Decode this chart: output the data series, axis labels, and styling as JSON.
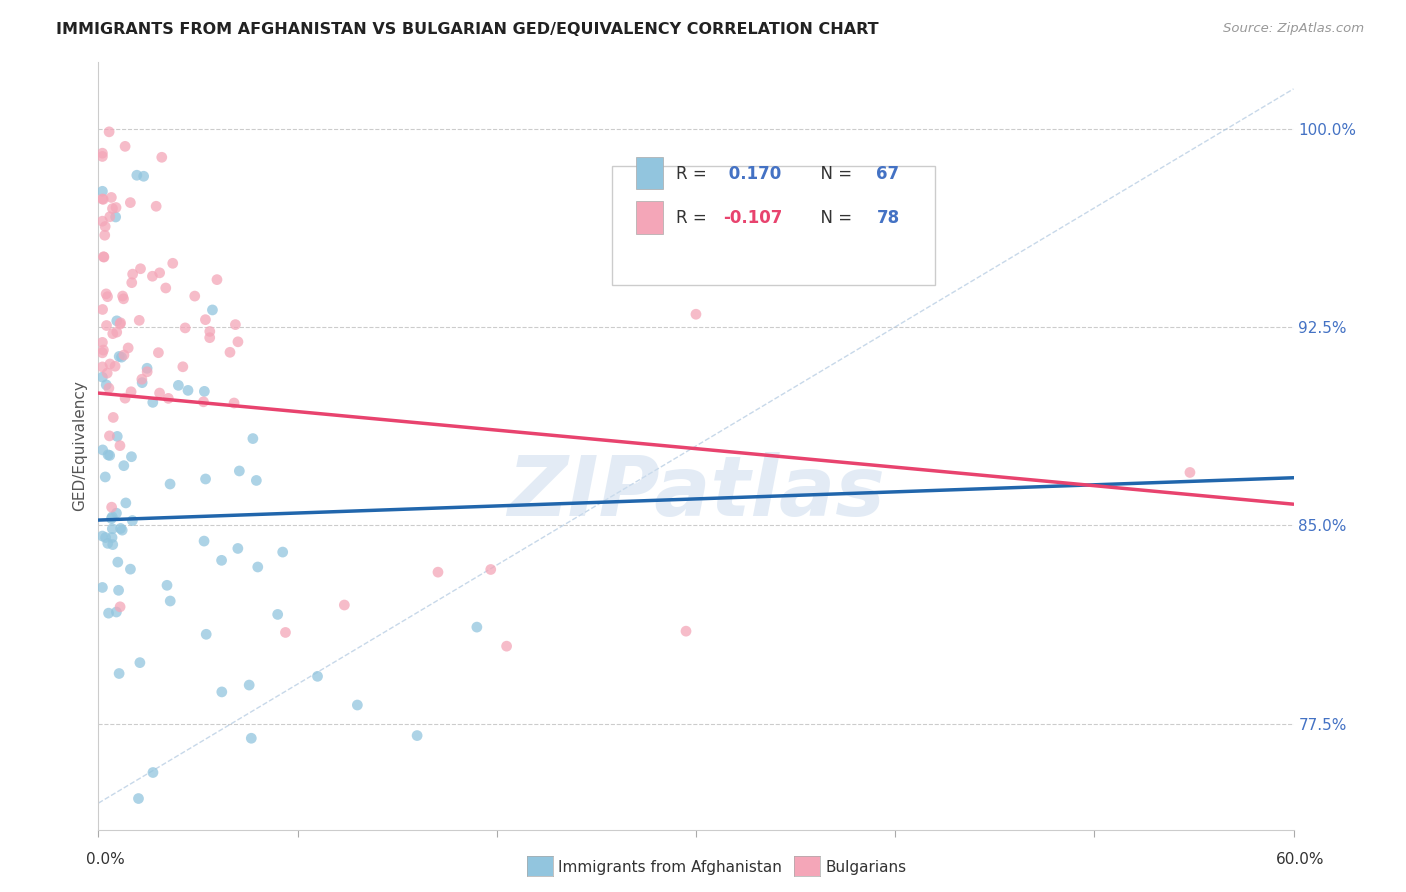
{
  "title": "IMMIGRANTS FROM AFGHANISTAN VS BULGARIAN GED/EQUIVALENCY CORRELATION CHART",
  "source": "Source: ZipAtlas.com",
  "ylabel": "GED/Equivalency",
  "yticks": [
    0.775,
    0.85,
    0.925,
    1.0
  ],
  "ytick_labels": [
    "77.5%",
    "85.0%",
    "92.5%",
    "100.0%"
  ],
  "xmin": 0.0,
  "xmax": 0.6,
  "ymin": 0.735,
  "ymax": 1.025,
  "color_afghanistan": "#92c5de",
  "color_bulgarians": "#f4a6b8",
  "color_trendline_afghanistan": "#2166ac",
  "color_trendline_bulgarians": "#e8436e",
  "color_diagonal": "#b8d4e8",
  "legend_r_af": " 0.170",
  "legend_n_af": "67",
  "legend_r_bg": "-0.107",
  "legend_n_bg": "78",
  "legend_label1": "Immigrants from Afghanistan",
  "legend_label2": "Bulgarians",
  "watermark": "ZIPatlas",
  "af_trend_x0": 0.0,
  "af_trend_x1": 0.6,
  "af_trend_y0": 0.852,
  "af_trend_y1": 0.868,
  "bg_trend_x0": 0.0,
  "bg_trend_x1": 0.6,
  "bg_trend_y0": 0.9,
  "bg_trend_y1": 0.858
}
